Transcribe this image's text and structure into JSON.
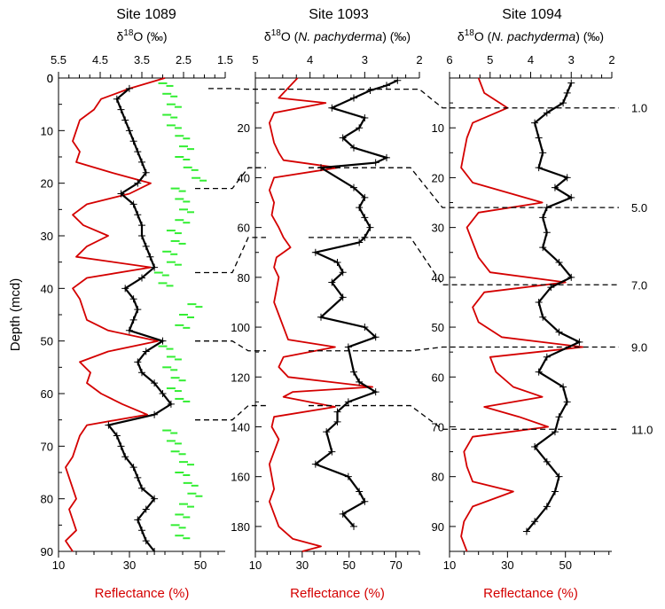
{
  "colors": {
    "reflectance": "#d40000",
    "d18o_main": "#000000",
    "d18o_second": "#33ee33",
    "axis": "#000000"
  },
  "chart_data": {
    "type": "line",
    "y_axis_label": "Depth (mcd)",
    "correlation_labels": [
      "1.0",
      "5.0",
      "7.0",
      "9.0",
      "11.0"
    ],
    "panels": [
      {
        "title": "Site 1089",
        "top_label": "δ18O (‰)",
        "top_label_parts": {
          "pre": "δ",
          "sup": "18",
          "post": "O (‰)",
          "italic": ""
        },
        "top_axis": {
          "min": 1.5,
          "max": 5.5,
          "reversed": true,
          "major_ticks": [
            5.5,
            4.5,
            3.5,
            2.5,
            1.5
          ],
          "tick_labels": [
            "5.5",
            "4.5",
            "3.5",
            "2.5",
            "1.5"
          ]
        },
        "bottom_axis": {
          "label": "Reflectance (%)",
          "min": 10,
          "max": 57,
          "ticks": [
            10,
            30,
            50
          ],
          "tick_labels": [
            "10",
            "30",
            "50"
          ]
        },
        "depth_axis": {
          "min": 0,
          "max": 90,
          "ticks": [
            0,
            10,
            20,
            30,
            40,
            50,
            60,
            70,
            80,
            90
          ],
          "tick_labels": [
            "0",
            "10",
            "20",
            "30",
            "40",
            "50",
            "60",
            "70",
            "80",
            "90"
          ]
        },
        "series": [
          {
            "role": "reflectance",
            "style": "line",
            "depth": [
              0,
              2,
              4,
              6,
              8,
              10,
              12,
              14,
              16,
              18,
              20,
              22,
              24,
              26,
              28,
              30,
              32,
              34,
              36,
              38,
              40,
              42,
              44,
              46,
              48,
              50,
              52,
              54,
              56,
              58,
              60,
              62,
              64,
              66,
              68,
              70,
              72,
              74,
              76,
              78,
              80,
              82,
              84,
              86,
              88,
              90
            ],
            "value": [
              40,
              30,
              22,
              20,
              16,
              15,
              14,
              16,
              15,
              25,
              36,
              30,
              18,
              14,
              17,
              24,
              18,
              15,
              36,
              18,
              14,
              16,
              17,
              18,
              24,
              38,
              24,
              16,
              19,
              18,
              22,
              28,
              35,
              18,
              16,
              15,
              14,
              12,
              13,
              14,
              15,
              13,
              14,
              15,
              12,
              14
            ]
          },
          {
            "role": "d18o_main",
            "style": "crosses",
            "depth": [
              2,
              4,
              6,
              8,
              10,
              12,
              14,
              16,
              18,
              20,
              22,
              24,
              26,
              28,
              30,
              32,
              34,
              36,
              38,
              40,
              42,
              44,
              46,
              48,
              50,
              52,
              54,
              56,
              58,
              60,
              62,
              64,
              66,
              68,
              70,
              72,
              74,
              76,
              78,
              80,
              82,
              84,
              86,
              88,
              90
            ],
            "value": [
              3.8,
              4.1,
              4.0,
              3.9,
              3.8,
              3.7,
              3.6,
              3.5,
              3.4,
              3.6,
              4.0,
              3.7,
              3.6,
              3.5,
              3.5,
              3.4,
              3.3,
              3.2,
              3.5,
              3.9,
              3.7,
              3.6,
              3.7,
              3.8,
              3.0,
              3.4,
              3.6,
              3.5,
              3.2,
              3.0,
              2.8,
              3.2,
              4.3,
              4.1,
              4.0,
              3.9,
              3.7,
              3.6,
              3.5,
              3.2,
              3.4,
              3.6,
              3.5,
              3.4,
              3.2
            ]
          },
          {
            "role": "d18o_second",
            "style": "dashes",
            "depth": [
              1,
              3,
              5,
              7,
              9,
              11,
              13,
              15,
              17,
              19,
              21,
              23,
              25,
              27,
              29,
              31,
              33,
              35,
              37,
              39,
              43,
              45,
              47,
              51,
              53,
              55,
              57,
              59,
              61,
              67,
              69,
              71,
              73,
              75,
              77,
              79,
              81,
              83,
              85,
              87
            ],
            "value": [
              3.0,
              2.9,
              2.8,
              2.9,
              2.8,
              2.6,
              2.5,
              2.6,
              2.4,
              2.2,
              2.7,
              2.6,
              2.5,
              2.6,
              2.8,
              2.7,
              2.9,
              2.8,
              3.1,
              3.0,
              2.3,
              2.5,
              2.6,
              3.0,
              2.8,
              2.9,
              2.7,
              2.8,
              2.6,
              2.9,
              2.8,
              2.7,
              2.5,
              2.6,
              2.4,
              2.3,
              2.5,
              2.6,
              2.7,
              2.6
            ]
          }
        ]
      },
      {
        "title": "Site 1093",
        "top_label": "δ18O (N. pachyderma) (‰)",
        "top_label_parts": {
          "pre": "δ",
          "sup": "18",
          "post": "O (",
          "italic": "N. pachyderma",
          "post2": ") (‰)"
        },
        "top_axis": {
          "min": 2,
          "max": 5,
          "reversed": true,
          "major_ticks": [
            5,
            4,
            3,
            2
          ],
          "tick_labels": [
            "5",
            "4",
            "3",
            "2"
          ]
        },
        "bottom_axis": {
          "label": "Reflectance (%)",
          "min": 10,
          "max": 80,
          "ticks": [
            10,
            30,
            50,
            70
          ],
          "tick_labels": [
            "10",
            "30",
            "50",
            "70"
          ]
        },
        "depth_axis": {
          "min": 0,
          "max": 190,
          "ticks": [
            20,
            40,
            60,
            80,
            100,
            120,
            140,
            160,
            180
          ],
          "tick_labels": [
            "20",
            "40",
            "60",
            "80",
            "100",
            "120",
            "140",
            "160",
            "180"
          ]
        },
        "series": [
          {
            "role": "reflectance",
            "style": "line",
            "depth": [
              0,
              4,
              8,
              10,
              14,
              18,
              22,
              26,
              30,
              33,
              36,
              40,
              45,
              50,
              55,
              60,
              64,
              68,
              72,
              76,
              80,
              85,
              90,
              95,
              100,
              105,
              108,
              112,
              116,
              120,
              124,
              126,
              128,
              132,
              136,
              140,
              145,
              150,
              155,
              160,
              165,
              170,
              175,
              180,
              185,
              188,
              190
            ],
            "value": [
              28,
              24,
              20,
              40,
              18,
              16,
              17,
              18,
              20,
              22,
              45,
              18,
              16,
              18,
              17,
              20,
              22,
              25,
              19,
              18,
              20,
              19,
              18,
              20,
              22,
              24,
              44,
              22,
              20,
              24,
              60,
              26,
              22,
              44,
              18,
              17,
              20,
              18,
              16,
              17,
              18,
              16,
              18,
              20,
              26,
              38,
              30
            ]
          },
          {
            "role": "d18o_main",
            "style": "crosses",
            "depth": [
              1,
              3,
              5,
              8,
              12,
              16,
              20,
              24,
              28,
              32,
              34,
              36,
              44,
              48,
              52,
              56,
              60,
              64,
              66,
              70,
              74,
              78,
              82,
              88,
              96,
              100,
              104,
              108,
              118,
              122,
              126,
              130,
              134,
              138,
              142,
              150,
              155,
              160,
              166,
              170,
              175,
              180
            ],
            "value": [
              2.4,
              2.6,
              2.9,
              3.2,
              3.6,
              3.0,
              3.1,
              3.4,
              3.2,
              2.6,
              2.8,
              3.8,
              3.2,
              3.0,
              3.1,
              3.0,
              2.9,
              3.0,
              3.1,
              3.9,
              3.5,
              3.4,
              3.6,
              3.4,
              3.8,
              3.0,
              2.8,
              3.3,
              3.2,
              3.1,
              2.8,
              3.3,
              3.5,
              3.5,
              3.7,
              3.6,
              3.9,
              3.3,
              3.1,
              3.0,
              3.4,
              3.2
            ]
          }
        ]
      },
      {
        "title": "Site 1094",
        "top_label": "δ18O (N. pachyderma) (‰)",
        "top_label_parts": {
          "pre": "δ",
          "sup": "18",
          "post": "O (",
          "italic": "N. pachyderma",
          "post2": ") (‰)"
        },
        "top_axis": {
          "min": 2,
          "max": 6,
          "reversed": true,
          "major_ticks": [
            6,
            5,
            4,
            3,
            2
          ],
          "tick_labels": [
            "6",
            "5",
            "4",
            "3",
            "2"
          ]
        },
        "bottom_axis": {
          "label": "Reflectance (%)",
          "min": 10,
          "max": 66,
          "ticks": [
            10,
            30,
            50
          ],
          "tick_labels": [
            "10",
            "30",
            "50"
          ]
        },
        "depth_axis": {
          "min": 0,
          "max": 95,
          "ticks": [
            10,
            20,
            30,
            40,
            50,
            60,
            70,
            80,
            90
          ],
          "tick_labels": [
            "10",
            "20",
            "30",
            "40",
            "50",
            "60",
            "70",
            "80",
            "90"
          ]
        },
        "series": [
          {
            "role": "reflectance",
            "style": "line",
            "depth": [
              0,
              3,
              6,
              9,
              12,
              15,
              18,
              21,
              23,
              25,
              27,
              30,
              33,
              36,
              39,
              41,
              43,
              46,
              49,
              52,
              54,
              56,
              59,
              62,
              64,
              66,
              68,
              70,
              72,
              75,
              78,
              81,
              83,
              86,
              89,
              92,
              95
            ],
            "value": [
              20,
              22,
              30,
              18,
              16,
              15,
              14,
              18,
              30,
              42,
              20,
              16,
              18,
              20,
              24,
              50,
              22,
              18,
              20,
              28,
              56,
              24,
              26,
              32,
              42,
              22,
              34,
              44,
              18,
              15,
              16,
              18,
              32,
              18,
              15,
              14,
              16
            ]
          },
          {
            "role": "d18o_main",
            "style": "crosses",
            "depth": [
              1,
              3,
              5,
              7,
              9,
              12,
              15,
              18,
              20,
              22,
              24,
              26,
              28,
              31,
              34,
              37,
              40,
              42,
              45,
              48,
              51,
              53,
              56,
              59,
              62,
              65,
              68,
              71,
              74,
              77,
              80,
              83,
              86,
              89,
              91
            ],
            "value": [
              3.0,
              3.1,
              3.2,
              3.6,
              3.9,
              3.8,
              3.7,
              3.8,
              3.1,
              3.4,
              3.0,
              3.6,
              3.7,
              3.6,
              3.7,
              3.3,
              3.0,
              3.5,
              3.8,
              3.7,
              3.3,
              2.8,
              3.6,
              3.8,
              3.2,
              3.1,
              3.3,
              3.4,
              3.9,
              3.6,
              3.3,
              3.4,
              3.6,
              3.9,
              4.1
            ]
          }
        ]
      }
    ],
    "correlation_lines": [
      {
        "label": "1.0",
        "p1089": 2,
        "p1093": 4.5,
        "p1094": 6
      },
      {
        "label": "",
        "p1089": 21,
        "p1093": 36
      },
      {
        "label": "5.0",
        "p1093": 36,
        "p1094": 26
      },
      {
        "label": "",
        "p1089": 37,
        "p1093": 64
      },
      {
        "label": "7.0",
        "p1093": 64,
        "p1094": 41.5
      },
      {
        "label": "",
        "p1089": 50,
        "p1093": 109.5
      },
      {
        "label": "9.0",
        "p1093": 109.5,
        "p1094": 54
      },
      {
        "label": "",
        "p1089": 65,
        "p1093": 131.5
      },
      {
        "label": "11.0",
        "p1093": 131.5,
        "p1094": 70.5
      }
    ]
  }
}
